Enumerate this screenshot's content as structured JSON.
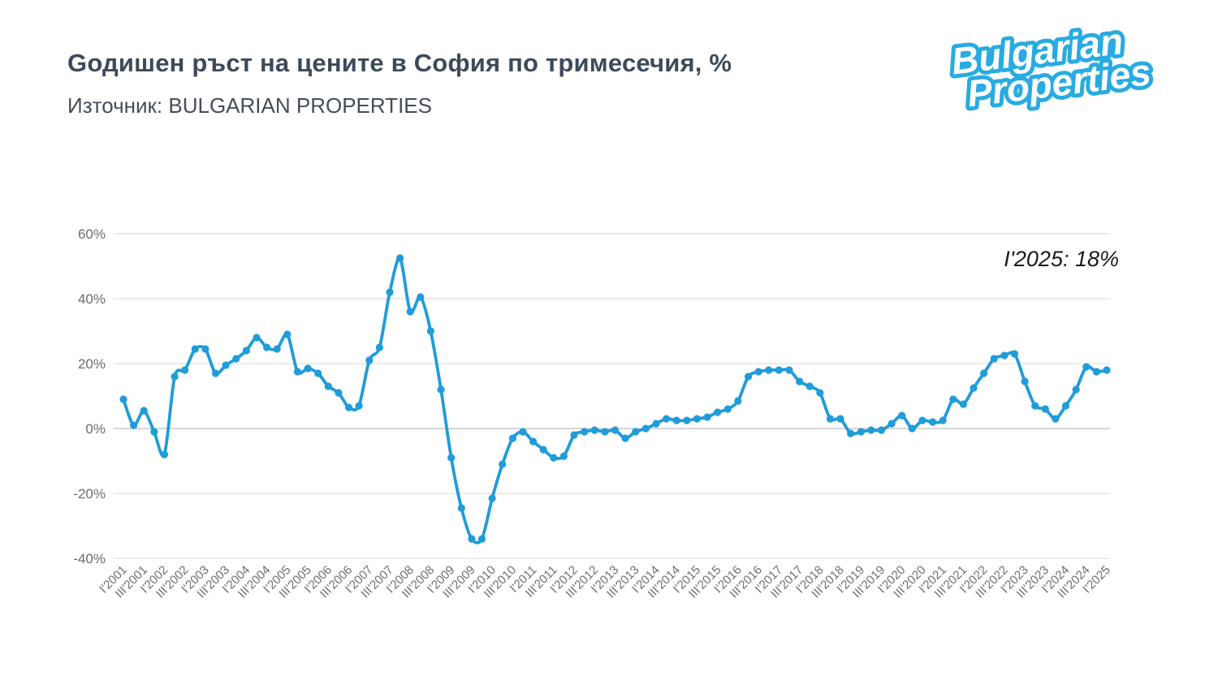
{
  "header": {
    "title": "Gодишен ръст на цените в София по тримесечия, %",
    "source": "Източник: BULGARIAN PROPERTIES"
  },
  "logo": {
    "line1": "Bulgarian",
    "line2": "Properties",
    "brand_color": "#29abe2"
  },
  "annotation": "I'2025: 18%",
  "chart_data": {
    "type": "line",
    "title": "Gодишен ръст на цените в София по тримесечия, %",
    "series_name": "Годишен ръст на цените в София",
    "series_color": "#1f9cd9",
    "grid": true,
    "legend_position": "none",
    "ylim": [
      -40,
      60
    ],
    "yticks": [
      60,
      40,
      20,
      0,
      -20,
      -40
    ],
    "ytick_suffix": "%",
    "xtick_every": 2,
    "categories": [
      "I'2001",
      "II'2001",
      "III'2001",
      "IV'2001",
      "I'2002",
      "II'2002",
      "III'2002",
      "IV'2002",
      "I'2003",
      "II'2003",
      "III'2003",
      "IV'2003",
      "I'2004",
      "II'2004",
      "III'2004",
      "IV'2004",
      "I'2005",
      "II'2005",
      "III'2005",
      "IV'2005",
      "I'2006",
      "II'2006",
      "III'2006",
      "IV'2006",
      "I'2007",
      "II'2007",
      "III'2007",
      "IV'2007",
      "I'2008",
      "II'2008",
      "III'2008",
      "IV'2008",
      "I'2009",
      "II'2009",
      "III'2009",
      "IV'2009",
      "I'2010",
      "II'2010",
      "III'2010",
      "IV'2010",
      "I'2011",
      "II'2011",
      "III'2011",
      "IV'2011",
      "I'2012",
      "II'2012",
      "III'2012",
      "IV'2012",
      "I'2013",
      "II'2013",
      "III'2013",
      "IV'2013",
      "I'2014",
      "II'2014",
      "III'2014",
      "IV'2014",
      "I'2015",
      "II'2015",
      "III'2015",
      "IV'2015",
      "I'2016",
      "II'2016",
      "III'2016",
      "IV'2016",
      "I'2017",
      "II'2017",
      "III'2017",
      "IV'2017",
      "I'2018",
      "II'2018",
      "III'2018",
      "IV'2018",
      "I'2019",
      "II'2019",
      "III'2019",
      "IV'2019",
      "I'2020",
      "II'2020",
      "III'2020",
      "IV'2020",
      "I'2021",
      "II'2021",
      "III'2021",
      "IV'2021",
      "I'2022",
      "II'2022",
      "III'2022",
      "IV'2022",
      "I'2023",
      "II'2023",
      "III'2023",
      "IV'2023",
      "I'2024",
      "II'2024",
      "III'2024",
      "IV'2024",
      "I'2025"
    ],
    "values": [
      9,
      1,
      5.5,
      -1,
      -8,
      16,
      18,
      24.5,
      24.5,
      17,
      19.5,
      21.5,
      24,
      28,
      25,
      24.5,
      29,
      17.5,
      18.5,
      17,
      13,
      11,
      6.5,
      7,
      21,
      25,
      42,
      52.5,
      36,
      40.5,
      30,
      12,
      -9,
      -24.5,
      -34,
      -34,
      -21.5,
      -11,
      -3,
      -1,
      -4,
      -6.5,
      -9,
      -8.5,
      -2,
      -1,
      -0.5,
      -1,
      -0.5,
      -3,
      -1,
      0,
      1.5,
      3,
      2.5,
      2.5,
      3,
      3.5,
      5,
      6,
      8.5,
      16,
      17.5,
      18,
      18,
      18,
      14.5,
      13,
      11,
      3,
      3,
      -1.5,
      -1,
      -0.5,
      -0.5,
      1.5,
      4,
      0,
      2.5,
      2,
      2.5,
      9,
      7.5,
      12.5,
      17,
      21.5,
      22.5,
      23,
      14.5,
      7,
      6,
      3,
      7,
      12,
      19,
      17.5,
      18
    ]
  }
}
